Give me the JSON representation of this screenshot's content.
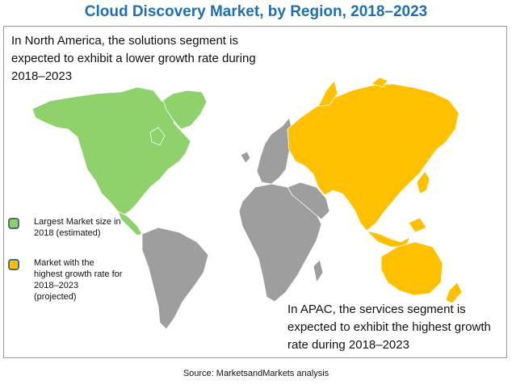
{
  "title": "Cloud Discovery Market, by Region, 2018–2023",
  "notes": {
    "north_america": "In North America, the solutions segment is expected to exhibit a lower growth rate during 2018–2023",
    "apac": "In APAC, the services segment is expected to exhibit the highest growth rate during 2018–2023"
  },
  "legend": [
    {
      "label": "Largest Market size in 2018 (estimated)",
      "color": "#8fd16a"
    },
    {
      "label": "Market with the highest growth rate for 2018–2023 (projected)",
      "color": "#ffc000"
    }
  ],
  "colors": {
    "title": "#1f6fb5",
    "north_america": "#8fd16a",
    "apac": "#ffc000",
    "other": "#9e9e9e"
  },
  "source": "Source: MarketsandMarkets analysis"
}
